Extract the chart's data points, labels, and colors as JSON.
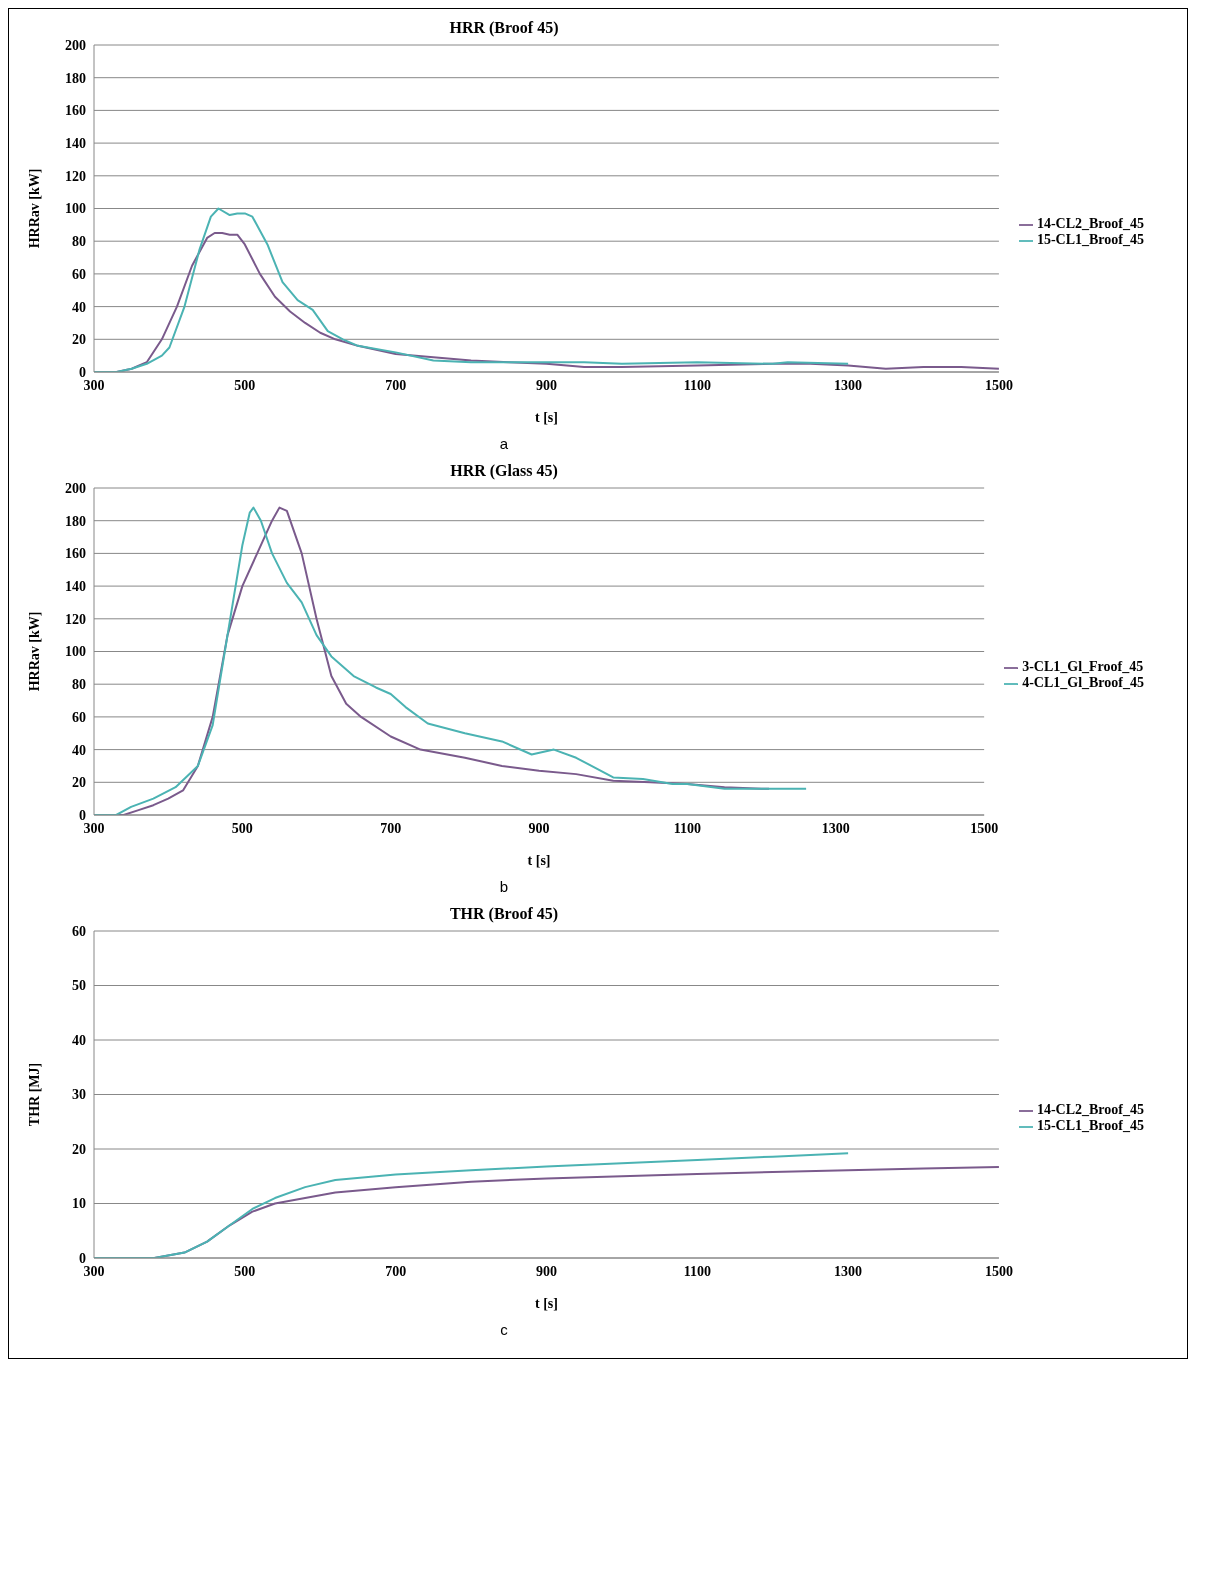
{
  "chart_data": [
    {
      "type": "line",
      "title": "HRR (Broof 45)",
      "xlabel": "t [s]",
      "ylabel": "HRRav [kW]",
      "annotations": [
        "a"
      ],
      "xlim": [
        300,
        1500
      ],
      "xticks": [
        300,
        500,
        700,
        900,
        1100,
        1300,
        1500
      ],
      "ylim": [
        0,
        200
      ],
      "yticks": [
        0,
        20,
        40,
        60,
        80,
        100,
        120,
        140,
        160,
        180,
        200
      ],
      "grid": "y",
      "legend": "right",
      "marker": "none",
      "series": [
        {
          "name": "14-CL2_Broof_45",
          "color": "#7a5a8c",
          "x": [
            300,
            330,
            350,
            370,
            390,
            410,
            430,
            450,
            460,
            470,
            480,
            490,
            500,
            520,
            540,
            560,
            580,
            600,
            620,
            650,
            700,
            750,
            800,
            850,
            900,
            950,
            1000,
            1100,
            1200,
            1250,
            1300,
            1350,
            1400,
            1450,
            1500
          ],
          "values": [
            0,
            0,
            2,
            6,
            20,
            40,
            65,
            82,
            85,
            85,
            84,
            84,
            78,
            60,
            46,
            37,
            30,
            24,
            20,
            16,
            11,
            9,
            7,
            6,
            5,
            3,
            3,
            4,
            5,
            5,
            4,
            2,
            3,
            3,
            2
          ]
        },
        {
          "name": "15-CL1_Broof_45",
          "color": "#4bb3b3",
          "x": [
            300,
            330,
            350,
            370,
            390,
            400,
            420,
            440,
            455,
            465,
            480,
            490,
            500,
            510,
            530,
            550,
            570,
            590,
            610,
            630,
            650,
            700,
            750,
            800,
            850,
            900,
            950,
            1000,
            1100,
            1200,
            1220,
            1300
          ],
          "values": [
            0,
            0,
            2,
            5,
            10,
            15,
            40,
            75,
            95,
            100,
            96,
            97,
            97,
            95,
            78,
            55,
            44,
            38,
            25,
            20,
            16,
            12,
            7,
            6,
            6,
            6,
            6,
            5,
            6,
            5,
            6,
            5
          ]
        }
      ]
    },
    {
      "type": "line",
      "title": "HRR (Glass 45)",
      "xlabel": "t [s]",
      "ylabel": "HRRav [kW]",
      "annotations": [
        "b"
      ],
      "xlim": [
        300,
        1500
      ],
      "xticks": [
        300,
        500,
        700,
        900,
        1100,
        1300,
        1500
      ],
      "ylim": [
        0,
        200
      ],
      "yticks": [
        0,
        20,
        40,
        60,
        80,
        100,
        120,
        140,
        160,
        180,
        200
      ],
      "grid": "y",
      "legend": "right",
      "marker": "none",
      "series": [
        {
          "name": "3-CL1_Gl_Froof_45",
          "color": "#7a5a8c",
          "x": [
            300,
            340,
            360,
            380,
            400,
            420,
            440,
            460,
            480,
            500,
            520,
            540,
            550,
            560,
            580,
            600,
            620,
            640,
            660,
            700,
            740,
            800,
            850,
            900,
            950,
            1000,
            1050,
            1100,
            1150,
            1200,
            1210
          ],
          "values": [
            0,
            0,
            3,
            6,
            10,
            15,
            30,
            60,
            110,
            140,
            160,
            180,
            188,
            186,
            160,
            120,
            85,
            68,
            60,
            48,
            40,
            35,
            30,
            27,
            25,
            21,
            20,
            19,
            17,
            16,
            16
          ]
        },
        {
          "name": "4-CL1_Gl_Broof_45",
          "color": "#4bb3b3",
          "x": [
            300,
            330,
            350,
            380,
            410,
            440,
            460,
            480,
            500,
            510,
            515,
            525,
            540,
            560,
            580,
            600,
            620,
            650,
            680,
            700,
            720,
            750,
            800,
            850,
            890,
            920,
            950,
            1000,
            1040,
            1080,
            1100,
            1150,
            1200,
            1260
          ],
          "values": [
            0,
            0,
            5,
            10,
            17,
            30,
            55,
            110,
            165,
            185,
            188,
            180,
            160,
            142,
            130,
            110,
            97,
            85,
            78,
            74,
            66,
            56,
            50,
            45,
            37,
            40,
            35,
            23,
            22,
            19,
            19,
            16,
            16,
            16
          ]
        }
      ]
    },
    {
      "type": "line",
      "title": "THR (Broof 45)",
      "xlabel": "t [s]",
      "ylabel": "THR [MJ]",
      "annotations": [
        "c"
      ],
      "xlim": [
        300,
        1500
      ],
      "xticks": [
        300,
        500,
        700,
        900,
        1100,
        1300,
        1500
      ],
      "ylim": [
        0,
        60
      ],
      "yticks": [
        0,
        10,
        20,
        30,
        40,
        50,
        60
      ],
      "grid": "y",
      "legend": "right",
      "marker": "none",
      "series": [
        {
          "name": "14-CL2_Broof_45",
          "color": "#7a5a8c",
          "x": [
            300,
            380,
            420,
            450,
            480,
            510,
            540,
            580,
            620,
            700,
            800,
            900,
            1000,
            1100,
            1200,
            1300,
            1400,
            1500
          ],
          "values": [
            0,
            0,
            1,
            3,
            6,
            8.5,
            10,
            11,
            12,
            13,
            14,
            14.6,
            15,
            15.4,
            15.8,
            16.1,
            16.4,
            16.7
          ]
        },
        {
          "name": "15-CL1_Broof_45",
          "color": "#4bb3b3",
          "x": [
            300,
            380,
            420,
            450,
            480,
            510,
            540,
            580,
            620,
            700,
            800,
            900,
            1000,
            1100,
            1200,
            1300
          ],
          "values": [
            0,
            0,
            1,
            3,
            6,
            9,
            11,
            13,
            14.3,
            15.3,
            16.1,
            16.8,
            17.4,
            18,
            18.6,
            19.2
          ]
        }
      ]
    }
  ]
}
